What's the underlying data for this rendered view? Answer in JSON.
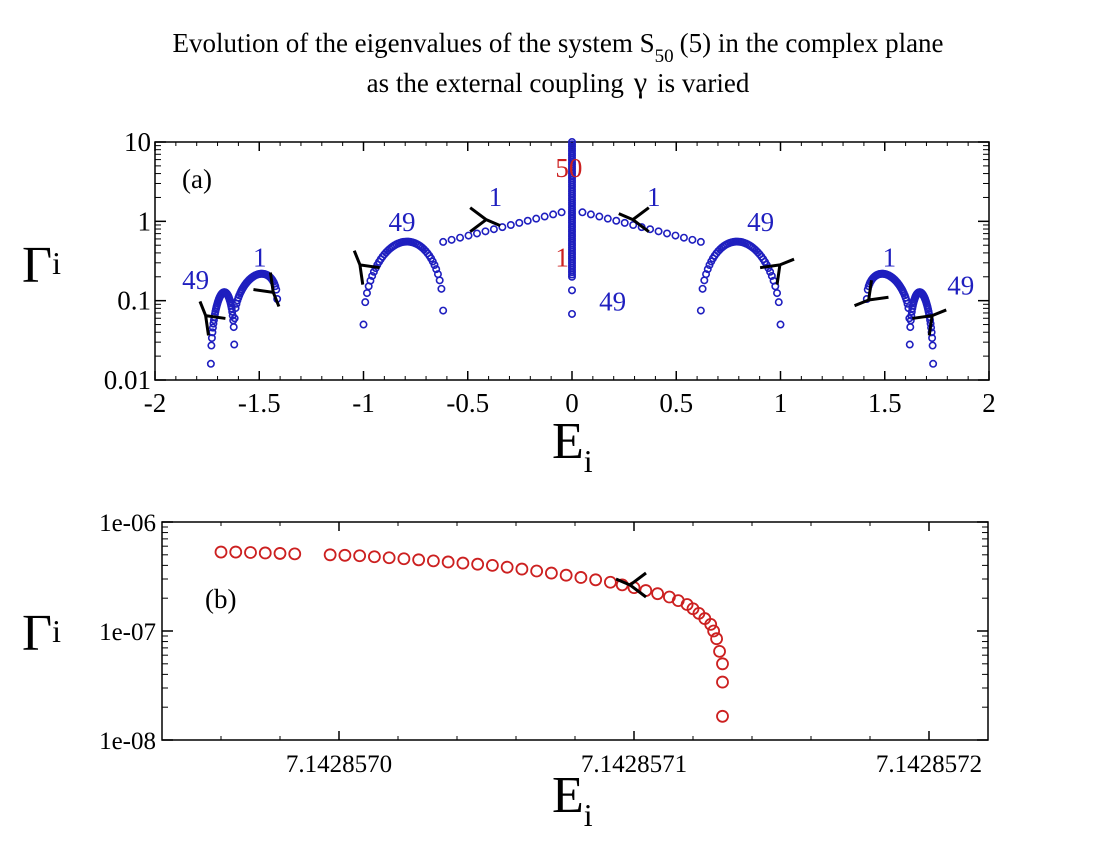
{
  "title": {
    "line1_pre": "Evolution of the eigenvalues of the system S",
    "line1_sub": "50",
    "line1_post": "(5) in the complex plane",
    "line2_pre": "as the external coupling",
    "line2_symbol": "γ",
    "line2_post": "is varied"
  },
  "colors": {
    "blue": "#1f1fbf",
    "red": "#cc2020",
    "black": "#000000"
  },
  "chart_data": [
    {
      "panel": "(a)",
      "type": "scatter",
      "xlabel": "E",
      "xlabel_sub": "i",
      "ylabel": "Γ",
      "ylabel_sub": "i",
      "xlim": [
        -2,
        2
      ],
      "ylim": [
        0.01,
        10
      ],
      "yscale": "log",
      "xticks": [
        -2,
        -1.5,
        -1,
        -0.5,
        0,
        0.5,
        1,
        1.5,
        2
      ],
      "xtick_labels": [
        "-2",
        "-1.5",
        "-1",
        "-0.5",
        "0",
        "0.5",
        "1",
        "1.5",
        "2"
      ],
      "yticks": [
        0.01,
        0.1,
        1,
        10
      ],
      "ytick_labels": [
        "0.01",
        "0.1",
        "1",
        "10"
      ],
      "arcs": [
        {
          "e1": -1.732,
          "e2": -1.62,
          "g1": 0.016,
          "g2": 0.028,
          "peak": 0.125
        },
        {
          "e1": -1.618,
          "e2": -1.414,
          "g1": 0.06,
          "g2": 0.105,
          "peak": 0.21
        },
        {
          "e1": -1.0,
          "e2": -0.618,
          "g1": 0.05,
          "g2": 0.075,
          "peak": 0.55
        },
        {
          "e1": 0.618,
          "e2": 1.0,
          "g1": 0.075,
          "g2": 0.05,
          "peak": 0.55
        },
        {
          "e1": 1.414,
          "e2": 1.618,
          "g1": 0.105,
          "g2": 0.06,
          "peak": 0.21
        },
        {
          "e1": 1.62,
          "e2": 1.732,
          "g1": 0.028,
          "g2": 0.016,
          "peak": 0.125
        }
      ],
      "branches": [
        {
          "e_start": -0.618,
          "e_end": -0.05,
          "g_start": 0.55,
          "g_end": 1.3
        },
        {
          "e_start": 0.05,
          "e_end": 0.618,
          "g_start": 1.3,
          "g_end": 0.55
        }
      ],
      "center_line": {
        "e": 0,
        "g_min": 0.2,
        "g_max": 10
      },
      "center_points": [
        0.135,
        0.068
      ],
      "annotations": [
        {
          "text": "49",
          "e": -1.87,
          "g": 0.14,
          "color": "blue"
        },
        {
          "text": "1",
          "e": -1.53,
          "g": 0.27,
          "color": "blue"
        },
        {
          "text": "49",
          "e": -0.88,
          "g": 0.75,
          "color": "blue"
        },
        {
          "text": "1",
          "e": -0.4,
          "g": 1.55,
          "color": "blue"
        },
        {
          "text": "50",
          "e": -0.08,
          "g": 3.6,
          "color": "red"
        },
        {
          "text": "1",
          "e": -0.08,
          "g": 0.27,
          "color": "red"
        },
        {
          "text": "49",
          "e": 0.13,
          "g": 0.075,
          "color": "blue"
        },
        {
          "text": "1",
          "e": 0.36,
          "g": 1.55,
          "color": "blue"
        },
        {
          "text": "49",
          "e": 0.84,
          "g": 0.75,
          "color": "blue"
        },
        {
          "text": "1",
          "e": 1.49,
          "g": 0.27,
          "color": "blue"
        },
        {
          "text": "49",
          "e": 1.8,
          "g": 0.12,
          "color": "blue"
        }
      ],
      "arrows": [
        {
          "e": -1.73,
          "g": 0.055,
          "dir": "ul"
        },
        {
          "e": -1.46,
          "g": 0.15,
          "dir": "dr"
        },
        {
          "e": -0.99,
          "g": 0.24,
          "dir": "ul"
        },
        {
          "e": -0.45,
          "g": 1.05,
          "dir": "r"
        },
        {
          "e": 0.33,
          "g": 1.05,
          "dir": "l"
        },
        {
          "e": 0.97,
          "g": 0.24,
          "dir": "ur"
        },
        {
          "e": 1.45,
          "g": 0.12,
          "dir": "dl"
        },
        {
          "e": 1.7,
          "g": 0.055,
          "dir": "ur"
        }
      ]
    },
    {
      "panel": "(b)",
      "type": "scatter",
      "xlabel": "E",
      "xlabel_sub": "i",
      "ylabel": "Γ",
      "ylabel_sub": "i",
      "xlim": [
        7.14285694,
        7.14285722
      ],
      "ylim": [
        1e-08,
        1e-06
      ],
      "yscale": "log",
      "xtick_labels": [
        "7.1428570",
        "7.1428571",
        "7.1428572"
      ],
      "xtick_values": [
        7.142857,
        7.1428571,
        7.1428572
      ],
      "ytick_labels": [
        "1e-08",
        "1e-07",
        "1e-06"
      ],
      "ytick_values": [
        1e-08,
        1e-07,
        1e-06
      ],
      "points": [
        [
          7.14285696,
          5.3e-07
        ],
        [
          7.142856965,
          5.3e-07
        ],
        [
          7.14285697,
          5.25e-07
        ],
        [
          7.142856975,
          5.2e-07
        ],
        [
          7.14285698,
          5.15e-07
        ],
        [
          7.142856985,
          5.1e-07
        ],
        [
          7.142856997,
          5e-07
        ],
        [
          7.142857002,
          4.95e-07
        ],
        [
          7.142857007,
          4.9e-07
        ],
        [
          7.142857012,
          4.8e-07
        ],
        [
          7.142857017,
          4.7e-07
        ],
        [
          7.142857022,
          4.6e-07
        ],
        [
          7.142857027,
          4.5e-07
        ],
        [
          7.142857032,
          4.4e-07
        ],
        [
          7.142857037,
          4.3e-07
        ],
        [
          7.142857042,
          4.2e-07
        ],
        [
          7.142857047,
          4.1e-07
        ],
        [
          7.142857052,
          4e-07
        ],
        [
          7.142857057,
          3.85e-07
        ],
        [
          7.142857062,
          3.7e-07
        ],
        [
          7.142857067,
          3.55e-07
        ],
        [
          7.142857072,
          3.4e-07
        ],
        [
          7.142857077,
          3.25e-07
        ],
        [
          7.142857082,
          3.1e-07
        ],
        [
          7.142857087,
          2.95e-07
        ],
        [
          7.142857092,
          2.8e-07
        ],
        [
          7.142857096,
          2.65e-07
        ],
        [
          7.1428571,
          2.5e-07
        ],
        [
          7.142857104,
          2.35e-07
        ],
        [
          7.142857108,
          2.2e-07
        ],
        [
          7.142857112,
          2.05e-07
        ],
        [
          7.142857115,
          1.9e-07
        ],
        [
          7.142857118,
          1.75e-07
        ],
        [
          7.14285712,
          1.6e-07
        ],
        [
          7.142857122,
          1.45e-07
        ],
        [
          7.142857124,
          1.3e-07
        ],
        [
          7.142857126,
          1.15e-07
        ],
        [
          7.142857127,
          1e-07
        ],
        [
          7.142857128,
          8.5e-08
        ],
        [
          7.142857129,
          6.5e-08
        ],
        [
          7.14285713,
          5e-08
        ],
        [
          7.14285713,
          3.4e-08
        ],
        [
          7.14285713,
          1.65e-08
        ]
      ],
      "arrow": {
        "e": 7.1428571,
        "g": 3e-07,
        "dir": "l"
      }
    }
  ]
}
